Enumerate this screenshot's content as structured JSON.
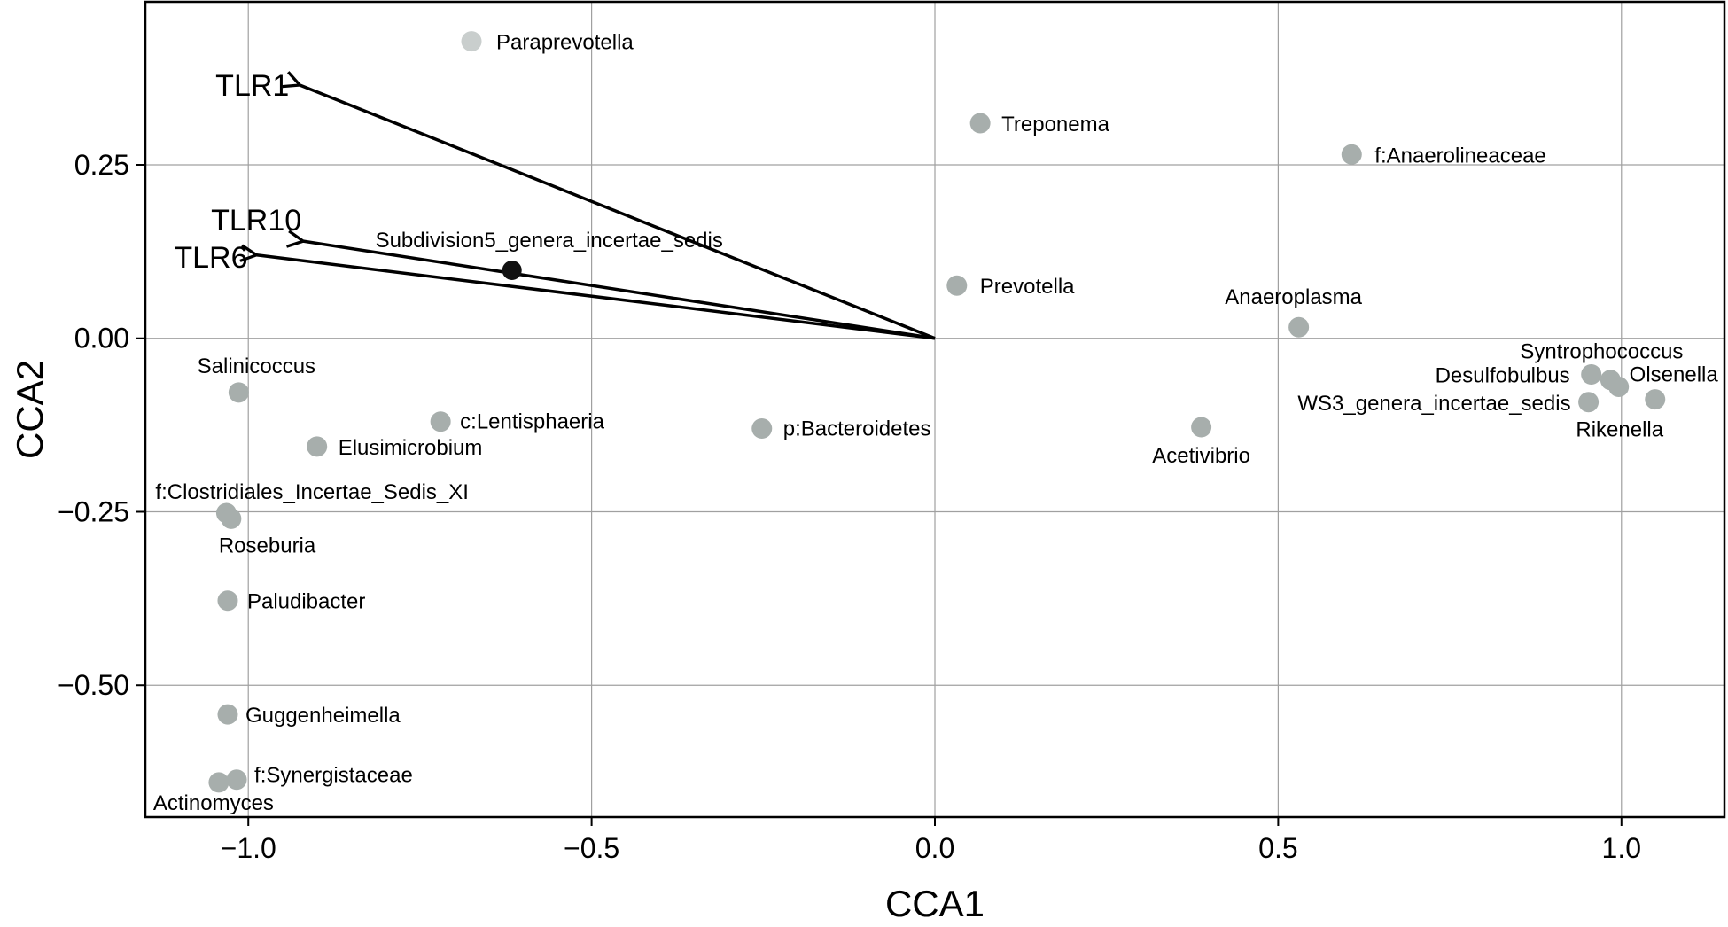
{
  "chart_data": {
    "type": "scatter",
    "title": "",
    "xlabel": "CCA1",
    "ylabel": "CCA2",
    "xlim": [
      -1.15,
      1.15
    ],
    "ylim": [
      -0.69,
      0.485
    ],
    "xticks": [
      -1.0,
      -0.5,
      0.0,
      0.5,
      1.0
    ],
    "xtick_labels": [
      "−1.0",
      "−0.5",
      "0.0",
      "0.5",
      "1.0"
    ],
    "yticks": [
      -0.5,
      -0.25,
      0.0,
      0.25
    ],
    "ytick_labels": [
      "−0.50",
      "−0.25",
      "0.00",
      "0.25"
    ],
    "grid": true,
    "colors": {
      "point": "#a7aeac",
      "point_light": "#c9cecd",
      "highlight": "#111111",
      "arrow": "#000000"
    },
    "points": [
      {
        "label": "Paraprevotella",
        "x": -0.675,
        "y": 0.428,
        "color": "light"
      },
      {
        "label": "Treponema",
        "x": 0.066,
        "y": 0.31
      },
      {
        "label": "f:Anaerolineaceae",
        "x": 0.607,
        "y": 0.265
      },
      {
        "label": "Subdivision5_genera_incertae_sedis",
        "x": -0.616,
        "y": 0.098,
        "color": "highlight"
      },
      {
        "label": "Prevotella",
        "x": 0.032,
        "y": 0.076
      },
      {
        "label": "Anaeroplasma",
        "x": 0.53,
        "y": 0.016
      },
      {
        "label": "Syntrophococcus",
        "x": 0.984,
        "y": -0.06
      },
      {
        "label": "Desulfobulbus",
        "x": 0.956,
        "y": -0.052
      },
      {
        "label": "Olsenella",
        "x": 0.996,
        "y": -0.07
      },
      {
        "label": "WS3_genera_incertae_sedis",
        "x": 0.952,
        "y": -0.092
      },
      {
        "label": "Rikenella",
        "x": 1.049,
        "y": -0.088
      },
      {
        "label": "Acetivibrio",
        "x": 0.388,
        "y": -0.128
      },
      {
        "label": "Salinicoccus",
        "x": -1.014,
        "y": -0.078
      },
      {
        "label": "c:Lentisphaeria",
        "x": -0.72,
        "y": -0.12
      },
      {
        "label": "p:Bacteroidetes",
        "x": -0.252,
        "y": -0.13
      },
      {
        "label": "Elusimicrobium",
        "x": -0.9,
        "y": -0.156
      },
      {
        "label": "f:Clostridiales_Incertae_Sedis_XI",
        "x": -1.032,
        "y": -0.252
      },
      {
        "label": "Roseburia",
        "x": -1.025,
        "y": -0.26
      },
      {
        "label": "Paludibacter",
        "x": -1.03,
        "y": -0.378
      },
      {
        "label": "Guggenheimella",
        "x": -1.03,
        "y": -0.542
      },
      {
        "label": "f:Synergistaceae",
        "x": -1.017,
        "y": -0.636
      },
      {
        "label": "Actinomyces",
        "x": -1.043,
        "y": -0.64
      }
    ],
    "arrows": [
      {
        "label": "TLR1",
        "x": -0.925,
        "y": 0.365
      },
      {
        "label": "TLR10",
        "x": -0.92,
        "y": 0.14
      },
      {
        "label": "TLR6",
        "x": -0.988,
        "y": 0.12
      }
    ]
  }
}
